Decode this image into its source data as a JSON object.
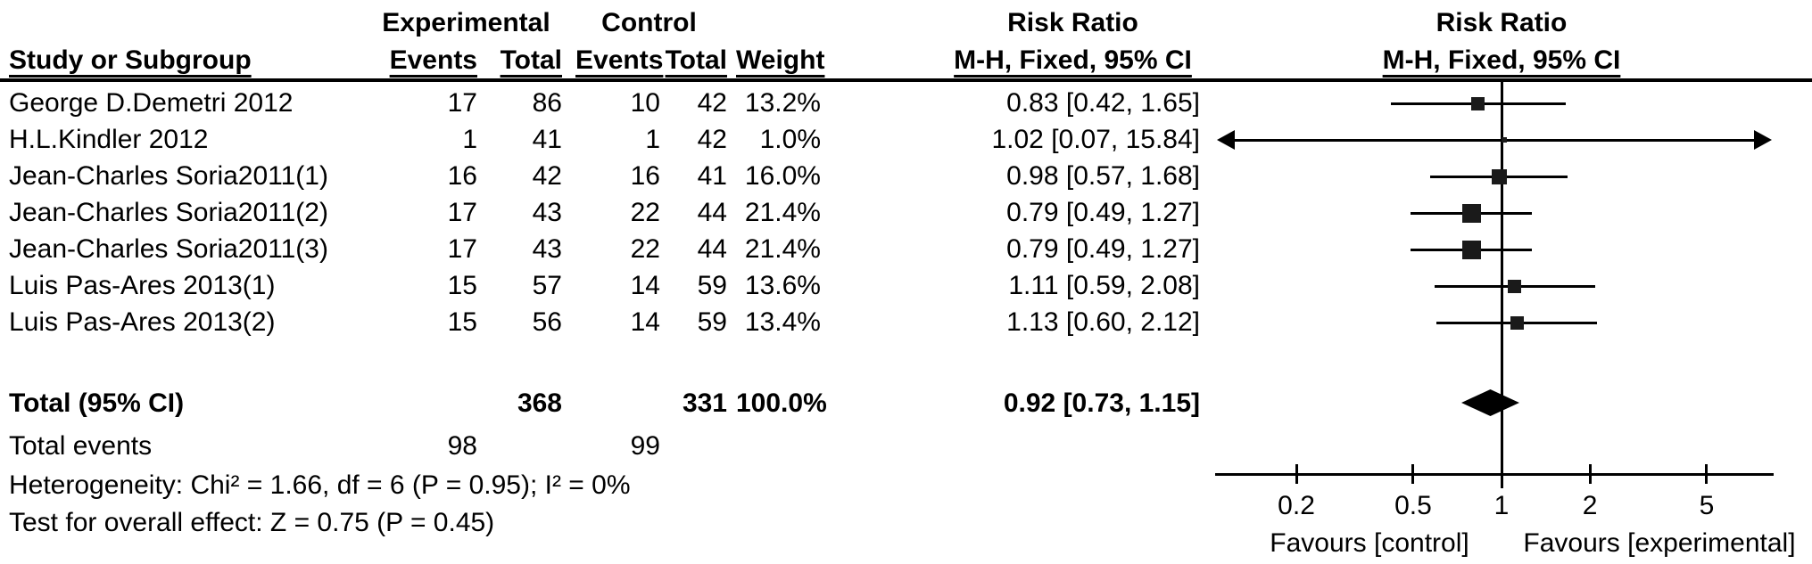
{
  "header": {
    "study_col": "Study or Subgroup",
    "experimental_group": "Experimental",
    "control_group": "Control",
    "events_col": "Events",
    "total_col": "Total",
    "weight_col": "Weight",
    "risk_ratio": "Risk Ratio",
    "method_ci": "M-H, Fixed, 95% CI"
  },
  "chart_data": {
    "type": "forest",
    "effect_measure": "Risk Ratio",
    "model": "M-H, Fixed, 95% CI",
    "x_axis": {
      "scale": "log",
      "ticks": [
        "0.2",
        "0.5",
        "1",
        "2",
        "5"
      ],
      "tick_values": [
        0.2,
        0.5,
        1,
        2,
        5
      ],
      "min": 0.106,
      "max": 8.4,
      "label_left": "Favours [control]",
      "label_right": "Favours [experimental]"
    },
    "studies": [
      {
        "name": "George D.Demetri 2012",
        "exp_events": 17,
        "exp_total": 86,
        "ctrl_events": 10,
        "ctrl_total": 42,
        "weight": "13.2%",
        "weight_pct": 13.2,
        "rr": 0.83,
        "ci_low": 0.42,
        "ci_high": 1.65,
        "label_ci": "0.83 [0.42, 1.65]"
      },
      {
        "name": "H.L.Kindler 2012",
        "exp_events": 1,
        "exp_total": 41,
        "ctrl_events": 1,
        "ctrl_total": 42,
        "weight": "1.0%",
        "weight_pct": 1.0,
        "rr": 1.02,
        "ci_low": 0.07,
        "ci_high": 15.84,
        "label_ci": "1.02 [0.07, 15.84]"
      },
      {
        "name": "Jean-Charles Soria2011(1)",
        "exp_events": 16,
        "exp_total": 42,
        "ctrl_events": 16,
        "ctrl_total": 41,
        "weight": "16.0%",
        "weight_pct": 16.0,
        "rr": 0.98,
        "ci_low": 0.57,
        "ci_high": 1.68,
        "label_ci": "0.98 [0.57, 1.68]"
      },
      {
        "name": "Jean-Charles Soria2011(2)",
        "exp_events": 17,
        "exp_total": 43,
        "ctrl_events": 22,
        "ctrl_total": 44,
        "weight": "21.4%",
        "weight_pct": 21.4,
        "rr": 0.79,
        "ci_low": 0.49,
        "ci_high": 1.27,
        "label_ci": "0.79 [0.49, 1.27]"
      },
      {
        "name": "Jean-Charles Soria2011(3)",
        "exp_events": 17,
        "exp_total": 43,
        "ctrl_events": 22,
        "ctrl_total": 44,
        "weight": "21.4%",
        "weight_pct": 21.4,
        "rr": 0.79,
        "ci_low": 0.49,
        "ci_high": 1.27,
        "label_ci": "0.79 [0.49, 1.27]"
      },
      {
        "name": "Luis Pas-Ares 2013(1)",
        "exp_events": 15,
        "exp_total": 57,
        "ctrl_events": 14,
        "ctrl_total": 59,
        "weight": "13.6%",
        "weight_pct": 13.6,
        "rr": 1.11,
        "ci_low": 0.59,
        "ci_high": 2.08,
        "label_ci": "1.11 [0.59, 2.08]"
      },
      {
        "name": "Luis Pas-Ares 2013(2)",
        "exp_events": 15,
        "exp_total": 56,
        "ctrl_events": 14,
        "ctrl_total": 59,
        "weight": "13.4%",
        "weight_pct": 13.4,
        "rr": 1.13,
        "ci_low": 0.6,
        "ci_high": 2.12,
        "label_ci": "1.13 [0.60, 2.12]"
      }
    ],
    "total": {
      "label": "Total (95% CI)",
      "exp_total": 368,
      "ctrl_total": 331,
      "weight": "100.0%",
      "rr": 0.92,
      "ci_low": 0.73,
      "ci_high": 1.15,
      "label_ci": "0.92 [0.73, 1.15]"
    },
    "total_events": {
      "label": "Total events",
      "experimental": 98,
      "control": 99
    },
    "footnotes": {
      "heterogeneity": "Heterogeneity: Chi² = 1.66, df = 6 (P = 0.95); I² = 0%",
      "overall_effect": "Test for overall effect: Z = 0.75 (P = 0.45)"
    }
  },
  "colors": {
    "text": "#000000",
    "line": "#000000",
    "marker": "#1a1a1a",
    "background": "#ffffff"
  }
}
